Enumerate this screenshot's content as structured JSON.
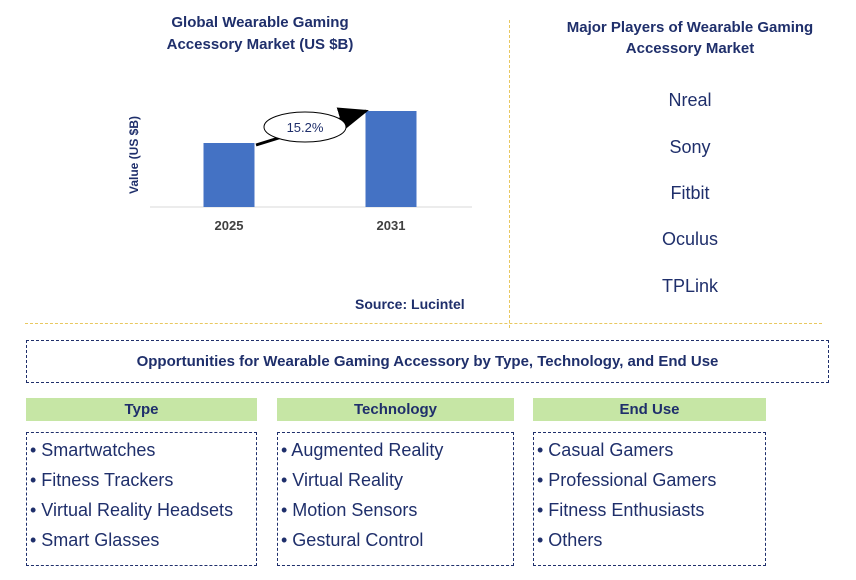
{
  "chart_data": {
    "type": "bar",
    "title": "Global Wearable Gaming Accessory Market (US $B)",
    "ylabel": "Value (US $B)",
    "categories": [
      "2025",
      "2031"
    ],
    "values": [
      1.0,
      1.5
    ],
    "annotation": "15.2%",
    "color": "#4472c4"
  },
  "source": "Source: Lucintel",
  "players": {
    "title": "Major Players of Wearable Gaming Accessory Market",
    "items": [
      "Nreal",
      "Sony",
      "Fitbit",
      "Oculus",
      "TPLink"
    ]
  },
  "opportunities": {
    "title": "Opportunities for Wearable Gaming Accessory by Type, Technology, and End Use"
  },
  "segments": [
    {
      "header": "Type",
      "items": [
        "• Smartwatches",
        "• Fitness Trackers",
        "• Virtual Reality Headsets",
        "• Smart Glasses"
      ]
    },
    {
      "header": "Technology",
      "items": [
        "• Augmented Reality",
        "• Virtual Reality",
        "• Motion Sensors",
        "• Gestural Control"
      ]
    },
    {
      "header": "End Use",
      "items": [
        "• Casual Gamers",
        "• Professional Gamers",
        "• Fitness Enthusiasts",
        "• Others"
      ]
    }
  ],
  "colors": {
    "text": "#1f2f6b",
    "header_bg": "#c6e6a5",
    "divider": "#e8c860"
  }
}
